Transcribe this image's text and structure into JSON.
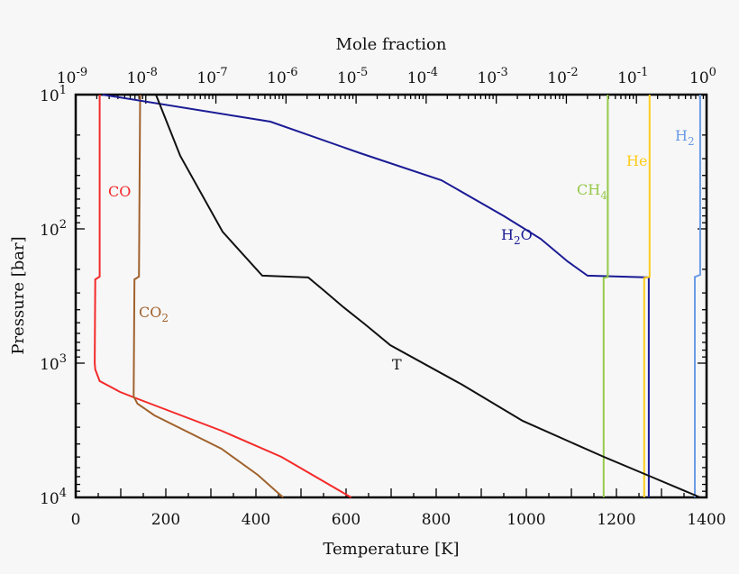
{
  "chart_data": {
    "type": "line",
    "top_axis": {
      "label": "Mole fraction",
      "scale": "log",
      "range": [
        1e-09,
        1
      ],
      "ticks": [
        {
          "base": "10",
          "exp": "-9"
        },
        {
          "base": "10",
          "exp": "-8"
        },
        {
          "base": "10",
          "exp": "-7"
        },
        {
          "base": "10",
          "exp": "-6"
        },
        {
          "base": "10",
          "exp": "-5"
        },
        {
          "base": "10",
          "exp": "-4"
        },
        {
          "base": "10",
          "exp": "-3"
        },
        {
          "base": "10",
          "exp": "-2"
        },
        {
          "base": "10",
          "exp": "-1"
        },
        {
          "base": "10",
          "exp": "0"
        }
      ]
    },
    "bottom_axis": {
      "label": "Temperature [K]",
      "scale": "linear",
      "range": [
        0,
        1400
      ],
      "ticks": [
        "0",
        "200",
        "400",
        "600",
        "800",
        "1000",
        "1200",
        "1400"
      ]
    },
    "y_axis": {
      "label": "Pressure [bar]",
      "scale": "log",
      "inverted": true,
      "range": [
        10,
        10000
      ],
      "ticks": [
        {
          "base": "10",
          "exp": "1"
        },
        {
          "base": "10",
          "exp": "2"
        },
        {
          "base": "10",
          "exp": "3"
        },
        {
          "base": "10",
          "exp": "4"
        }
      ]
    },
    "grid": false,
    "series": [
      {
        "name": "CO",
        "sub": "",
        "axis": "top",
        "color": "#f42a2a",
        "points": [
          [
            2.2e-09,
            10
          ],
          [
            2.2e-09,
            227
          ],
          [
            1.9e-09,
            238
          ],
          [
            1.87e-09,
            1000
          ],
          [
            1.9e-09,
            1114
          ],
          [
            2.2e-09,
            1361
          ],
          [
            4.3e-09,
            1640
          ],
          [
            7.3e-09,
            1828
          ],
          [
            1.2e-07,
            3187
          ],
          [
            8.6e-07,
            4989
          ],
          [
            8.5e-06,
            10000
          ]
        ]
      },
      {
        "name": "CO",
        "sub": "2",
        "axis": "top",
        "color": "#a0622d",
        "points": [
          [
            8.3e-09,
            10
          ],
          [
            8e-09,
            227
          ],
          [
            6.9e-09,
            238
          ],
          [
            6.7e-09,
            1770
          ],
          [
            7.6e-09,
            2004
          ],
          [
            1.33e-08,
            2450
          ],
          [
            1.2e-07,
            4342
          ],
          [
            3.95e-07,
            6796
          ],
          [
            9.1e-07,
            10000
          ]
        ]
      },
      {
        "name": "H",
        "sub": "2",
        "suffix": "O",
        "axis": "top",
        "color": "#1b1b96",
        "points": [
          [
            2.4e-09,
            10
          ],
          [
            6e-07,
            15.9
          ],
          [
            1.15e-05,
            27.3
          ],
          [
            0.000165,
            43.4
          ],
          [
            0.0013,
            80.5
          ],
          [
            0.0043,
            118.6
          ],
          [
            0.0104,
            174.6
          ],
          [
            0.02,
            223
          ],
          [
            0.15,
            230
          ],
          [
            0.15,
            10000
          ]
        ]
      },
      {
        "name": "CH",
        "sub": "4",
        "axis": "top",
        "color": "#96c84a",
        "points": [
          [
            0.039,
            10
          ],
          [
            0.039,
            228
          ],
          [
            0.034,
            232
          ],
          [
            0.034,
            10000
          ]
        ]
      },
      {
        "name": "He",
        "sub": "",
        "axis": "top",
        "color": "#ffcc1a",
        "points": [
          [
            0.154,
            10
          ],
          [
            0.154,
            228
          ],
          [
            0.129,
            232
          ],
          [
            0.129,
            10000
          ]
        ]
      },
      {
        "name": "H",
        "sub": "2",
        "axis": "top",
        "color": "#6b9be6",
        "points": [
          [
            0.81,
            10
          ],
          [
            0.81,
            220
          ],
          [
            0.68,
            228
          ],
          [
            0.68,
            10000
          ]
        ]
      },
      {
        "name": "T",
        "sub": "",
        "axis": "bottom",
        "color": "#111111",
        "points": [
          [
            178,
            10
          ],
          [
            232,
            28.6
          ],
          [
            326,
            105
          ],
          [
            414,
            223
          ],
          [
            516,
            230
          ],
          [
            552,
            290
          ],
          [
            592,
            378
          ],
          [
            642,
            514
          ],
          [
            698,
            734
          ],
          [
            858,
            1449
          ],
          [
            992,
            2692
          ],
          [
            1172,
            4989
          ],
          [
            1272,
            6906
          ],
          [
            1386,
            10000
          ]
        ]
      }
    ]
  }
}
